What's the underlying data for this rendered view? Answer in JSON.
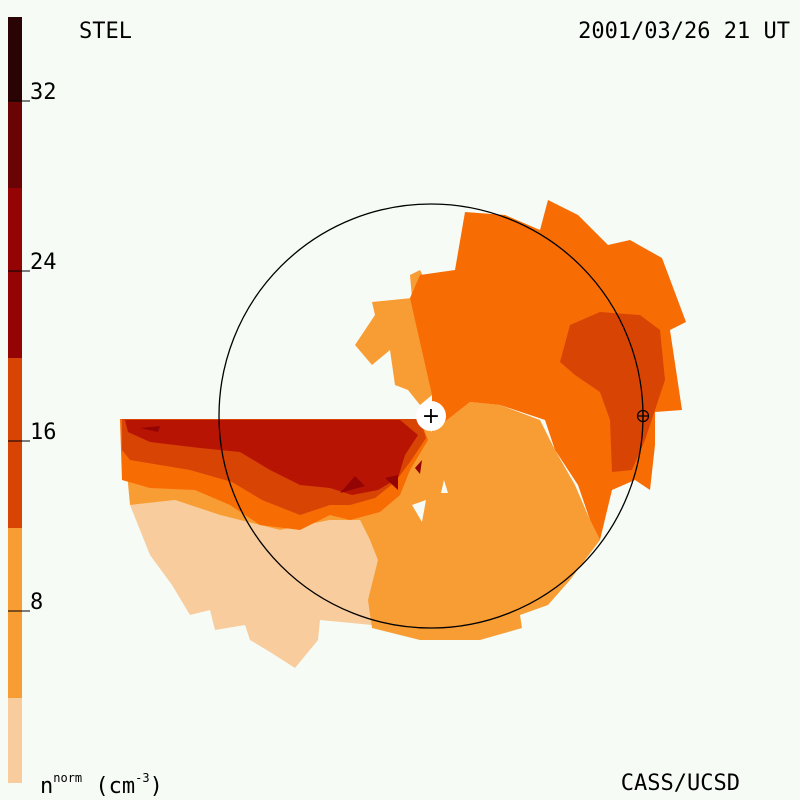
{
  "header": {
    "observatory": "STEL",
    "timestamp": "2001/03/26 21 UT"
  },
  "footer": {
    "credit": "CASS/UCSD",
    "unit_base": "n",
    "unit_sup": "norm",
    "unit_paren_open": "(cm",
    "unit_exp": "-3",
    "unit_paren_close": ")"
  },
  "color_scale": {
    "ticks": [
      "32",
      "24",
      "16",
      "8"
    ],
    "levels": [
      "#f8cc9c",
      "#f89c34",
      "#f86c04",
      "#d84404",
      "#b81404",
      "#940404",
      "#6a0404",
      "#2a0404"
    ]
  },
  "markers": {
    "sun": "+",
    "earth": "⊕"
  }
}
